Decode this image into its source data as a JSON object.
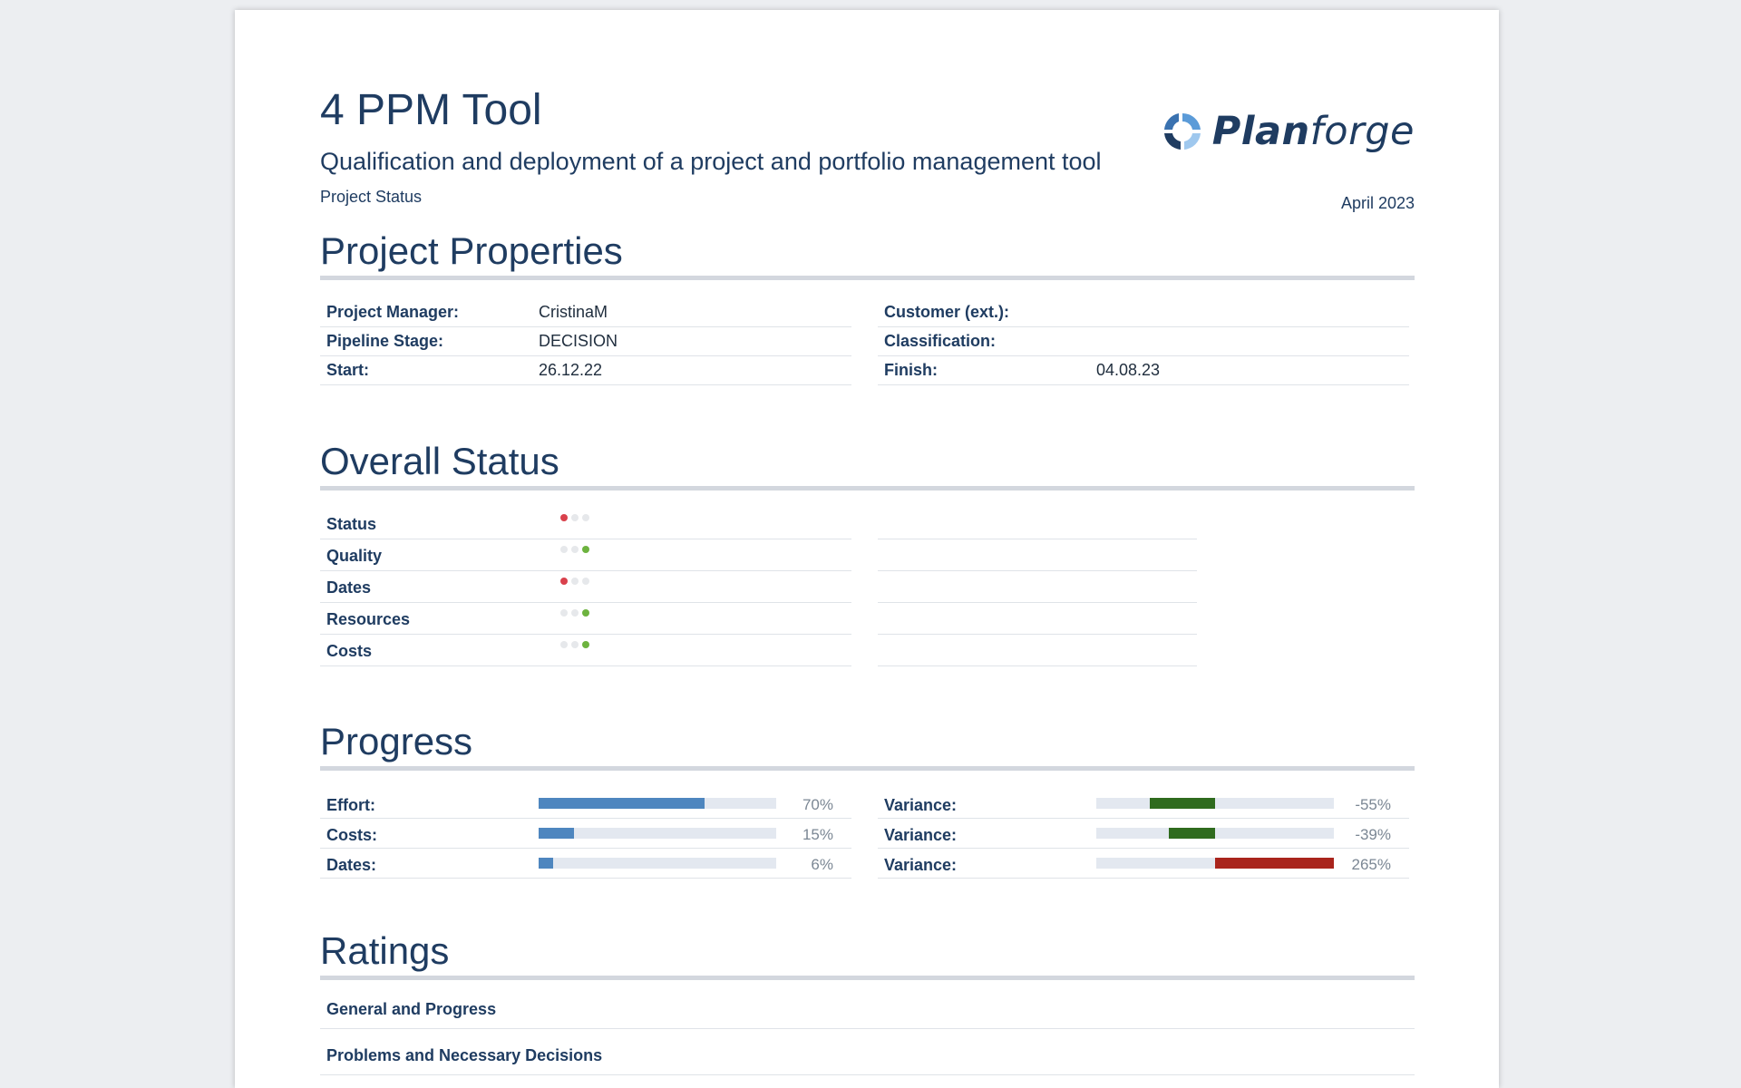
{
  "header": {
    "title": "4 PPM Tool",
    "subtitle": "Qualification and deployment of a project and portfolio management tool",
    "doc_type": "Project Status",
    "date": "April 2023",
    "logo_text_bold": "Plan",
    "logo_text_light": "forge",
    "logo_icon": "planforge-logo-icon"
  },
  "properties": {
    "title": "Project Properties",
    "left": [
      {
        "label": "Project Manager:",
        "value": "CristinaM"
      },
      {
        "label": "Pipeline Stage:",
        "value": "DECISION"
      },
      {
        "label": "Start:",
        "value": "26.12.22"
      }
    ],
    "right": [
      {
        "label": "Customer (ext.):",
        "value": ""
      },
      {
        "label": "Classification:",
        "value": ""
      },
      {
        "label": "Finish:",
        "value": "04.08.23"
      }
    ]
  },
  "overall_status": {
    "title": "Overall Status",
    "rows": [
      {
        "label": "Status",
        "light": "red"
      },
      {
        "label": "Quality",
        "light": "green"
      },
      {
        "label": "Dates",
        "light": "red"
      },
      {
        "label": "Resources",
        "light": "green"
      },
      {
        "label": "Costs",
        "light": "green"
      }
    ]
  },
  "progress": {
    "title": "Progress",
    "rows": [
      {
        "label": "Effort:",
        "value": 70,
        "display": "70%"
      },
      {
        "label": "Costs:",
        "value": 15,
        "display": "15%"
      },
      {
        "label": "Dates:",
        "value": 6,
        "display": "6%"
      }
    ],
    "variances": [
      {
        "label": "Variance:",
        "value": -55,
        "display": "-55%"
      },
      {
        "label": "Variance:",
        "value": -39,
        "display": "-39%"
      },
      {
        "label": "Variance:",
        "value": 265,
        "display": "265%"
      }
    ],
    "colors": {
      "progress": "#4e86bf",
      "variance_negative": "#2f6b1e",
      "variance_positive": "#a9241c"
    }
  },
  "ratings": {
    "title": "Ratings",
    "rows": [
      {
        "label": "General and Progress"
      },
      {
        "label": "Problems and Necessary Decisions"
      }
    ]
  }
}
